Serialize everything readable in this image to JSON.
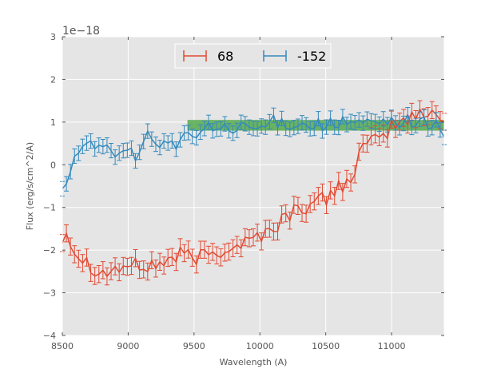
{
  "chart_data": {
    "type": "line",
    "title": "",
    "xlabel": "Wavelength (A)",
    "ylabel": "Flux (erg/s/cm^2/A)",
    "y_offset_label": "1e−18",
    "xlim": [
      8500,
      11400
    ],
    "ylim": [
      -4,
      3
    ],
    "xticks": [
      8500,
      9000,
      9500,
      10000,
      10500,
      11000
    ],
    "xtick_labels": [
      "8500",
      "9000",
      "9500",
      "10000",
      "10500",
      "11000"
    ],
    "yticks": [
      -4,
      -3,
      -2,
      -1,
      0,
      1,
      2,
      3
    ],
    "ytick_labels": [
      "−4",
      "−3",
      "−2",
      "−1",
      "0",
      "1",
      "2",
      "3"
    ],
    "grid": true,
    "legend_position": "top-center",
    "band": {
      "x0": 9450,
      "x1": 11400,
      "y0": 0.8,
      "y1": 1.05,
      "color": "#4aa544"
    },
    "series": [
      {
        "name": "68",
        "color": "#e24a33",
        "anchors": [
          [
            8500,
            -1.8
          ],
          [
            8530,
            -1.4
          ],
          [
            8560,
            -1.85
          ],
          [
            8620,
            -2.1
          ],
          [
            8700,
            -2.3
          ],
          [
            8800,
            -2.55
          ],
          [
            8900,
            -2.45
          ],
          [
            9000,
            -2.35
          ],
          [
            9100,
            -2.4
          ],
          [
            9200,
            -2.35
          ],
          [
            9300,
            -2.25
          ],
          [
            9400,
            -2.1
          ],
          [
            9500,
            -2.2
          ],
          [
            9600,
            -2.1
          ],
          [
            9700,
            -2.0
          ],
          [
            9800,
            -1.9
          ],
          [
            9900,
            -1.8
          ],
          [
            10000,
            -1.65
          ],
          [
            10100,
            -1.5
          ],
          [
            10200,
            -1.2
          ],
          [
            10300,
            -1.0
          ],
          [
            10400,
            -0.95
          ],
          [
            10500,
            -0.8
          ],
          [
            10600,
            -0.5
          ],
          [
            10700,
            -0.3
          ],
          [
            10750,
            0.2
          ],
          [
            10800,
            0.45
          ],
          [
            10900,
            0.55
          ],
          [
            11000,
            0.9
          ],
          [
            11100,
            1.05
          ],
          [
            11200,
            1.15
          ],
          [
            11300,
            1.2
          ],
          [
            11400,
            1.15
          ]
        ],
        "amplitude": 0.2,
        "error": 0.2
      },
      {
        "name": "-152",
        "color": "#348abd",
        "anchors": [
          [
            8500,
            -0.4
          ],
          [
            8530,
            -0.5
          ],
          [
            8560,
            0.0
          ],
          [
            8620,
            0.2
          ],
          [
            8700,
            0.45
          ],
          [
            8800,
            0.45
          ],
          [
            8900,
            0.35
          ],
          [
            9000,
            0.2
          ],
          [
            9100,
            0.3
          ],
          [
            9150,
            0.75
          ],
          [
            9200,
            0.6
          ],
          [
            9300,
            0.45
          ],
          [
            9400,
            0.55
          ],
          [
            9500,
            0.7
          ],
          [
            9600,
            0.85
          ],
          [
            9700,
            0.85
          ],
          [
            9800,
            0.8
          ],
          [
            9900,
            0.85
          ],
          [
            10000,
            0.85
          ],
          [
            10100,
            1.0
          ],
          [
            10200,
            1.0
          ],
          [
            10300,
            0.95
          ],
          [
            10400,
            0.95
          ],
          [
            10500,
            0.95
          ],
          [
            10600,
            0.95
          ],
          [
            10700,
            1.0
          ],
          [
            10800,
            0.95
          ],
          [
            10900,
            0.95
          ],
          [
            11000,
            1.0
          ],
          [
            11100,
            1.05
          ],
          [
            11200,
            1.0
          ],
          [
            11300,
            0.95
          ],
          [
            11400,
            0.8
          ]
        ],
        "amplitude": 0.17,
        "error": 0.17
      }
    ],
    "n_points": 95
  }
}
